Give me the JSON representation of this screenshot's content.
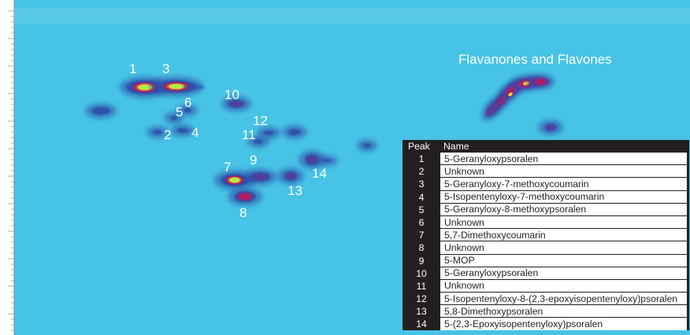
{
  "colors": {
    "background": "#46c3e6",
    "scale_low": "#46c3e6",
    "scale_mid": "#2d4fa8",
    "scale_high": "#c0185a",
    "scale_peak": "#b5e84a",
    "table_header_bg": "#231f20",
    "label_text": "#ffffff"
  },
  "region_label": "Flavanones and Flavones",
  "peak_labels": [
    "1",
    "3",
    "10",
    "5",
    "6",
    "12",
    "2",
    "4",
    "11",
    "9",
    "7",
    "14",
    "13",
    "8"
  ],
  "table": {
    "headers": {
      "peak": "Peak",
      "name": "Name"
    },
    "rows": [
      {
        "peak": "1",
        "name": "5-Geranyloxypsoralen"
      },
      {
        "peak": "2",
        "name": "Unknown"
      },
      {
        "peak": "3",
        "name": "5-Geranyloxy-7-methoxycoumarin"
      },
      {
        "peak": "4",
        "name": "5-Isopentenyloxy-7-methoxycoumarin"
      },
      {
        "peak": "5",
        "name": "5-Geranyloxy-8-methoxypsoralen"
      },
      {
        "peak": "6",
        "name": "Unknown"
      },
      {
        "peak": "7",
        "name": "5,7-Dimethoxycoumarin"
      },
      {
        "peak": "8",
        "name": "Unknown"
      },
      {
        "peak": "9",
        "name": "5-MOP"
      },
      {
        "peak": "10",
        "name": "5-Geranyloxypsoralen"
      },
      {
        "peak": "11",
        "name": "Unknown"
      },
      {
        "peak": "12",
        "name": "5-Isopentenyloxy-8-(2,3-epoxyisopentenyloxy)psoralen"
      },
      {
        "peak": "13",
        "name": "5,8-Dimethoxypsoralen"
      },
      {
        "peak": "14",
        "name": "5-(2,3-Epoxyisopentenyloxy)psoralen"
      }
    ]
  },
  "chart_data": {
    "type": "heatmap",
    "title": "",
    "xlabel": "",
    "ylabel": "",
    "annotations": [
      "1",
      "2",
      "3",
      "4",
      "5",
      "6",
      "7",
      "8",
      "9",
      "10",
      "11",
      "12",
      "13",
      "14",
      "Flavanones and Flavones"
    ],
    "peaks": [
      {
        "label": "1",
        "intensity": "highest"
      },
      {
        "label": "3",
        "intensity": "highest"
      },
      {
        "label": "7",
        "intensity": "highest"
      },
      {
        "label": "8",
        "intensity": "high"
      },
      {
        "label": "9",
        "intensity": "medium"
      },
      {
        "label": "10",
        "intensity": "medium"
      },
      {
        "label": "13",
        "intensity": "medium"
      },
      {
        "label": "14",
        "intensity": "medium"
      },
      {
        "label": "2",
        "intensity": "low"
      },
      {
        "label": "4",
        "intensity": "low"
      },
      {
        "label": "5",
        "intensity": "low"
      },
      {
        "label": "6",
        "intensity": "low"
      },
      {
        "label": "11",
        "intensity": "low"
      },
      {
        "label": "12",
        "intensity": "low"
      }
    ]
  }
}
